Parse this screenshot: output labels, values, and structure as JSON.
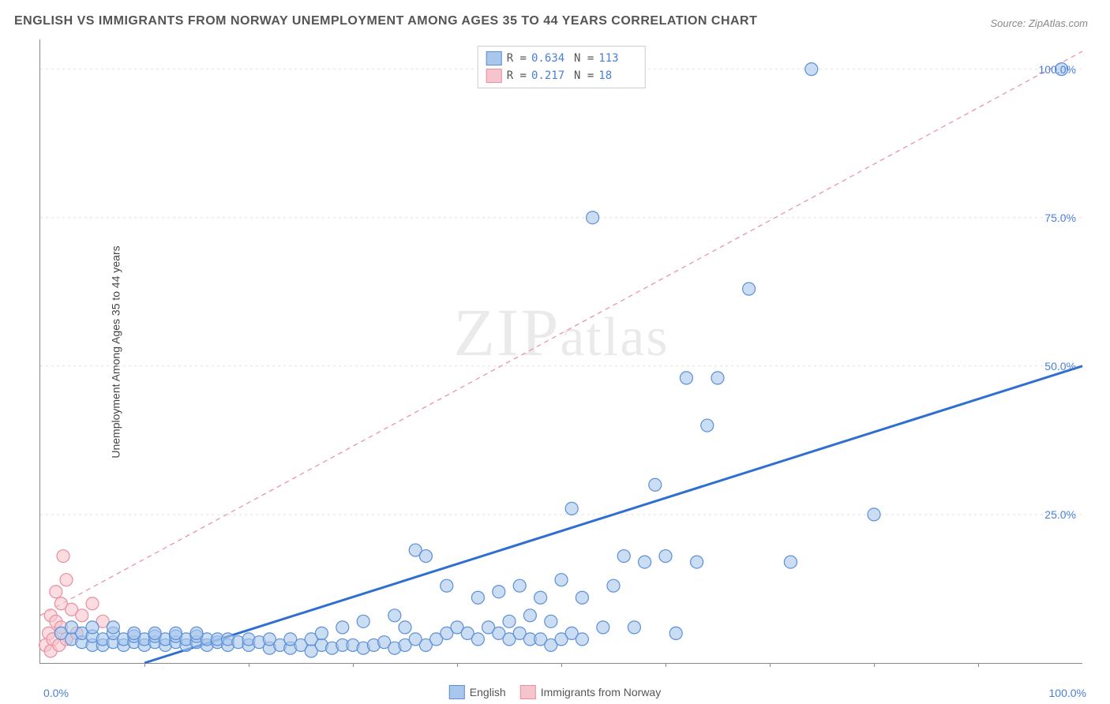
{
  "title": "ENGLISH VS IMMIGRANTS FROM NORWAY UNEMPLOYMENT AMONG AGES 35 TO 44 YEARS CORRELATION CHART",
  "source": "Source: ZipAtlas.com",
  "ylabel": "Unemployment Among Ages 35 to 44 years",
  "watermark": "ZIPatlas",
  "chart": {
    "type": "scatter",
    "xlim": [
      0,
      100
    ],
    "ylim": [
      0,
      105
    ],
    "xticks": {
      "min_label": "0.0%",
      "max_label": "100.0%"
    },
    "yticks": [
      {
        "value": 25,
        "label": "25.0%"
      },
      {
        "value": 50,
        "label": "50.0%"
      },
      {
        "value": 75,
        "label": "75.0%"
      },
      {
        "value": 100,
        "label": "100.0%"
      }
    ],
    "x_minor_tick_step": 10,
    "background_color": "#ffffff",
    "grid_color": "#e0e0e0",
    "series": [
      {
        "name": "English",
        "marker_color_fill": "#a9c7eb",
        "marker_color_stroke": "#5b8fd6",
        "marker_opacity": 0.6,
        "marker_radius": 8,
        "trend_color": "#2f6fd0",
        "trend_width": 3,
        "trend_dash": "none",
        "trend_line": {
          "x1": 10,
          "y1": 0,
          "x2": 100,
          "y2": 50
        },
        "R": "0.634",
        "N": "113",
        "points": [
          [
            2,
            5
          ],
          [
            3,
            4
          ],
          [
            4,
            3.5
          ],
          [
            4,
            5
          ],
          [
            5,
            3
          ],
          [
            5,
            4.5
          ],
          [
            6,
            3
          ],
          [
            6,
            4
          ],
          [
            7,
            3.5
          ],
          [
            7,
            5
          ],
          [
            8,
            3
          ],
          [
            8,
            4
          ],
          [
            9,
            3.5
          ],
          [
            9,
            4.5
          ],
          [
            10,
            3
          ],
          [
            10,
            4
          ],
          [
            11,
            3.5
          ],
          [
            11,
            4.5
          ],
          [
            12,
            3
          ],
          [
            12,
            4
          ],
          [
            13,
            3.5
          ],
          [
            13,
            4.5
          ],
          [
            14,
            3
          ],
          [
            14,
            4
          ],
          [
            15,
            3.5
          ],
          [
            15,
            4.5
          ],
          [
            16,
            3
          ],
          [
            16,
            4
          ],
          [
            17,
            3.5
          ],
          [
            17,
            4
          ],
          [
            18,
            3
          ],
          [
            18,
            4
          ],
          [
            19,
            3.5
          ],
          [
            20,
            3
          ],
          [
            20,
            4
          ],
          [
            21,
            3.5
          ],
          [
            22,
            2.5
          ],
          [
            22,
            4
          ],
          [
            23,
            3
          ],
          [
            24,
            2.5
          ],
          [
            24,
            4
          ],
          [
            25,
            3
          ],
          [
            26,
            2
          ],
          [
            26,
            4
          ],
          [
            27,
            3
          ],
          [
            27,
            5
          ],
          [
            28,
            2.5
          ],
          [
            29,
            3
          ],
          [
            29,
            6
          ],
          [
            30,
            3
          ],
          [
            31,
            2.5
          ],
          [
            31,
            7
          ],
          [
            32,
            3
          ],
          [
            33,
            3.5
          ],
          [
            34,
            2.5
          ],
          [
            34,
            8
          ],
          [
            35,
            3
          ],
          [
            35,
            6
          ],
          [
            36,
            4
          ],
          [
            36,
            19
          ],
          [
            37,
            3
          ],
          [
            37,
            18
          ],
          [
            38,
            4
          ],
          [
            39,
            5
          ],
          [
            39,
            13
          ],
          [
            40,
            6
          ],
          [
            41,
            5
          ],
          [
            42,
            4
          ],
          [
            42,
            11
          ],
          [
            43,
            6
          ],
          [
            44,
            5
          ],
          [
            44,
            12
          ],
          [
            45,
            4
          ],
          [
            45,
            7
          ],
          [
            46,
            5
          ],
          [
            46,
            13
          ],
          [
            47,
            4
          ],
          [
            47,
            8
          ],
          [
            48,
            4
          ],
          [
            48,
            11
          ],
          [
            49,
            3
          ],
          [
            49,
            7
          ],
          [
            50,
            4
          ],
          [
            50,
            14
          ],
          [
            51,
            5
          ],
          [
            51,
            26
          ],
          [
            52,
            4
          ],
          [
            52,
            11
          ],
          [
            53,
            75
          ],
          [
            54,
            6
          ],
          [
            55,
            13
          ],
          [
            56,
            18
          ],
          [
            57,
            6
          ],
          [
            58,
            17
          ],
          [
            59,
            30
          ],
          [
            60,
            18
          ],
          [
            61,
            5
          ],
          [
            62,
            48
          ],
          [
            63,
            17
          ],
          [
            64,
            40
          ],
          [
            65,
            48
          ],
          [
            68,
            63
          ],
          [
            72,
            17
          ],
          [
            74,
            100
          ],
          [
            80,
            25
          ],
          [
            98,
            100
          ],
          [
            3,
            6
          ],
          [
            5,
            6
          ],
          [
            7,
            6
          ],
          [
            9,
            5
          ],
          [
            11,
            5
          ],
          [
            13,
            5
          ],
          [
            15,
            5
          ]
        ]
      },
      {
        "name": "Immigrants from Norway",
        "marker_color_fill": "#f6c4cd",
        "marker_color_stroke": "#e98ea0",
        "marker_opacity": 0.6,
        "marker_radius": 8,
        "trend_color": "#e98ea0",
        "trend_width": 1.2,
        "trend_dash": "6,5",
        "trend_line": {
          "x1": 0,
          "y1": 8,
          "x2": 100,
          "y2": 103
        },
        "R": "0.217",
        "N": "18",
        "points": [
          [
            0.5,
            3
          ],
          [
            0.8,
            5
          ],
          [
            1,
            2
          ],
          [
            1,
            8
          ],
          [
            1.2,
            4
          ],
          [
            1.5,
            7
          ],
          [
            1.5,
            12
          ],
          [
            1.8,
            3
          ],
          [
            2,
            6
          ],
          [
            2,
            10
          ],
          [
            2.2,
            18
          ],
          [
            2.5,
            4
          ],
          [
            2.5,
            14
          ],
          [
            3,
            9
          ],
          [
            3.5,
            5
          ],
          [
            4,
            8
          ],
          [
            5,
            10
          ],
          [
            6,
            7
          ]
        ]
      }
    ],
    "legend_top_swatches": [
      {
        "fill": "#a9c7eb",
        "stroke": "#5b8fd6"
      },
      {
        "fill": "#f6c4cd",
        "stroke": "#e98ea0"
      }
    ],
    "legend_bottom": [
      {
        "label": "English",
        "fill": "#a9c7eb",
        "stroke": "#5b8fd6"
      },
      {
        "label": "Immigrants from Norway",
        "fill": "#f6c4cd",
        "stroke": "#e98ea0"
      }
    ]
  }
}
